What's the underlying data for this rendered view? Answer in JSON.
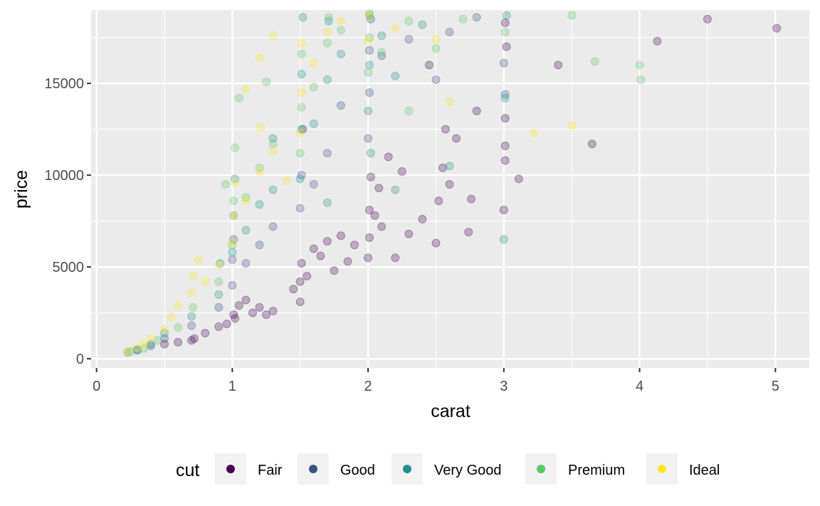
{
  "chart_data": {
    "type": "scatter",
    "xlabel": "carat",
    "ylabel": "price",
    "xlim": [
      -0.04,
      5.25
    ],
    "ylim": [
      -500,
      19000
    ],
    "x_ticks": [
      0,
      1,
      2,
      3,
      4,
      5
    ],
    "x_tick_labels": [
      "0",
      "1",
      "2",
      "3",
      "4",
      "5"
    ],
    "y_ticks": [
      0,
      5000,
      10000,
      15000
    ],
    "y_tick_labels": [
      "0",
      "5000",
      "10000",
      "15000"
    ],
    "grid": true,
    "background": "#EBEBEB",
    "point_alpha": 0.1,
    "legend": {
      "title": "cut",
      "position": "bottom",
      "entries": [
        {
          "label": "Fair",
          "color": "#440154"
        },
        {
          "label": "Good",
          "color": "#3B528B"
        },
        {
          "label": "Very Good",
          "color": "#21908C"
        },
        {
          "label": "Premium",
          "color": "#5DC863"
        },
        {
          "label": "Ideal",
          "color": "#FDE725"
        }
      ]
    },
    "series": [
      {
        "name": "Fair",
        "color": "#440154",
        "points": [
          [
            0.7,
            1000
          ],
          [
            0.72,
            1100
          ],
          [
            0.9,
            1750
          ],
          [
            0.96,
            1900
          ],
          [
            1.01,
            2400
          ],
          [
            1.05,
            2900
          ],
          [
            1.1,
            3200
          ],
          [
            1.2,
            2800
          ],
          [
            1.3,
            2600
          ],
          [
            1.5,
            3100
          ],
          [
            1.5,
            4200
          ],
          [
            1.51,
            5200
          ],
          [
            1.6,
            6000
          ],
          [
            1.7,
            6400
          ],
          [
            1.8,
            6700
          ],
          [
            1.9,
            6200
          ],
          [
            2.0,
            5500
          ],
          [
            2.01,
            6600
          ],
          [
            2.01,
            8100
          ],
          [
            2.02,
            9900
          ],
          [
            2.1,
            7200
          ],
          [
            2.2,
            5500
          ],
          [
            2.3,
            6800
          ],
          [
            2.5,
            6300
          ],
          [
            2.52,
            8600
          ],
          [
            2.57,
            12500
          ],
          [
            2.6,
            9500
          ],
          [
            2.74,
            6900
          ],
          [
            2.76,
            8700
          ],
          [
            3.0,
            8100
          ],
          [
            3.01,
            10800
          ],
          [
            3.01,
            11600
          ],
          [
            3.01,
            13100
          ],
          [
            3.01,
            18300
          ],
          [
            3.02,
            17000
          ],
          [
            3.11,
            9800
          ],
          [
            3.4,
            16000
          ],
          [
            3.65,
            11700
          ],
          [
            4.13,
            17300
          ],
          [
            4.5,
            18500
          ],
          [
            5.01,
            18000
          ],
          [
            0.5,
            800
          ],
          [
            0.6,
            900
          ],
          [
            0.8,
            1400
          ],
          [
            1.02,
            2200
          ],
          [
            1.15,
            2500
          ],
          [
            1.25,
            2400
          ],
          [
            1.45,
            3800
          ],
          [
            1.55,
            4500
          ],
          [
            1.65,
            5600
          ],
          [
            1.75,
            4800
          ],
          [
            1.85,
            5300
          ],
          [
            2.05,
            7800
          ],
          [
            2.08,
            9300
          ],
          [
            2.15,
            11000
          ],
          [
            2.25,
            10200
          ],
          [
            2.4,
            7600
          ],
          [
            2.55,
            10400
          ],
          [
            2.65,
            12000
          ],
          [
            2.8,
            13500
          ],
          [
            2.45,
            16000
          ]
        ]
      },
      {
        "name": "Good",
        "color": "#3B528B",
        "points": [
          [
            0.3,
            500
          ],
          [
            0.4,
            700
          ],
          [
            0.5,
            1100
          ],
          [
            0.7,
            1800
          ],
          [
            0.9,
            2800
          ],
          [
            1.0,
            4000
          ],
          [
            1.0,
            5400
          ],
          [
            1.01,
            6500
          ],
          [
            1.1,
            5200
          ],
          [
            1.2,
            6200
          ],
          [
            1.3,
            7200
          ],
          [
            1.5,
            8200
          ],
          [
            1.51,
            10000
          ],
          [
            1.52,
            12500
          ],
          [
            1.6,
            9500
          ],
          [
            1.7,
            11200
          ],
          [
            1.8,
            13800
          ],
          [
            2.0,
            12000
          ],
          [
            2.01,
            14500
          ],
          [
            2.01,
            16800
          ],
          [
            2.02,
            18500
          ],
          [
            2.1,
            16500
          ],
          [
            2.3,
            17400
          ],
          [
            2.5,
            15200
          ],
          [
            2.6,
            17800
          ],
          [
            2.8,
            18600
          ],
          [
            3.0,
            16100
          ],
          [
            3.01,
            14400
          ]
        ]
      },
      {
        "name": "Very Good",
        "color": "#21908C",
        "points": [
          [
            0.23,
            350
          ],
          [
            0.3,
            450
          ],
          [
            0.4,
            800
          ],
          [
            0.5,
            1400
          ],
          [
            0.7,
            2300
          ],
          [
            0.9,
            3500
          ],
          [
            0.91,
            5200
          ],
          [
            1.0,
            5800
          ],
          [
            1.01,
            7800
          ],
          [
            1.02,
            9800
          ],
          [
            1.1,
            7000
          ],
          [
            1.2,
            8400
          ],
          [
            1.3,
            9200
          ],
          [
            1.5,
            9800
          ],
          [
            1.51,
            12500
          ],
          [
            1.51,
            15500
          ],
          [
            1.52,
            18600
          ],
          [
            1.6,
            12800
          ],
          [
            1.7,
            15200
          ],
          [
            1.71,
            18400
          ],
          [
            1.8,
            16600
          ],
          [
            2.0,
            13500
          ],
          [
            2.01,
            16000
          ],
          [
            2.01,
            18700
          ],
          [
            2.02,
            11200
          ],
          [
            2.1,
            17600
          ],
          [
            2.2,
            15400
          ],
          [
            2.4,
            18200
          ],
          [
            2.6,
            10500
          ],
          [
            3.0,
            6500
          ],
          [
            3.01,
            14200
          ],
          [
            3.02,
            18700
          ],
          [
            1.3,
            12000
          ],
          [
            1.7,
            8500
          ],
          [
            2.2,
            9200
          ]
        ]
      },
      {
        "name": "Premium",
        "color": "#5DC863",
        "points": [
          [
            0.25,
            400
          ],
          [
            0.35,
            550
          ],
          [
            0.45,
            1000
          ],
          [
            0.6,
            1700
          ],
          [
            0.71,
            2800
          ],
          [
            0.9,
            4200
          ],
          [
            1.0,
            6200
          ],
          [
            1.01,
            8600
          ],
          [
            1.02,
            11500
          ],
          [
            1.1,
            8800
          ],
          [
            1.2,
            10400
          ],
          [
            1.3,
            11700
          ],
          [
            1.5,
            11200
          ],
          [
            1.51,
            13700
          ],
          [
            1.51,
            16600
          ],
          [
            1.6,
            14800
          ],
          [
            1.7,
            17200
          ],
          [
            1.71,
            18600
          ],
          [
            1.8,
            17900
          ],
          [
            2.0,
            15600
          ],
          [
            2.01,
            17500
          ],
          [
            2.01,
            18800
          ],
          [
            2.1,
            16700
          ],
          [
            2.3,
            18400
          ],
          [
            2.5,
            16900
          ],
          [
            2.7,
            18500
          ],
          [
            3.01,
            17800
          ],
          [
            3.5,
            18700
          ],
          [
            3.67,
            16200
          ],
          [
            4.0,
            16000
          ],
          [
            4.01,
            15200
          ],
          [
            1.05,
            14200
          ],
          [
            1.25,
            15100
          ],
          [
            0.95,
            9500
          ],
          [
            2.3,
            13500
          ]
        ]
      },
      {
        "name": "Ideal",
        "color": "#FDE725",
        "points": [
          [
            0.23,
            400
          ],
          [
            0.3,
            600
          ],
          [
            0.35,
            800
          ],
          [
            0.4,
            1100
          ],
          [
            0.5,
            1600
          ],
          [
            0.55,
            2300
          ],
          [
            0.6,
            2900
          ],
          [
            0.7,
            3600
          ],
          [
            0.71,
            4500
          ],
          [
            0.75,
            5400
          ],
          [
            0.8,
            4200
          ],
          [
            0.9,
            5100
          ],
          [
            1.0,
            6300
          ],
          [
            1.01,
            7800
          ],
          [
            1.02,
            9600
          ],
          [
            1.1,
            8600
          ],
          [
            1.2,
            10200
          ],
          [
            1.21,
            12600
          ],
          [
            1.3,
            11300
          ],
          [
            1.4,
            9700
          ],
          [
            1.5,
            12300
          ],
          [
            1.51,
            14500
          ],
          [
            1.51,
            17200
          ],
          [
            1.6,
            16100
          ],
          [
            1.7,
            17800
          ],
          [
            1.8,
            18400
          ],
          [
            2.0,
            17300
          ],
          [
            2.01,
            18700
          ],
          [
            2.2,
            18000
          ],
          [
            2.5,
            17400
          ],
          [
            3.22,
            12300
          ],
          [
            3.5,
            12700
          ],
          [
            1.1,
            14700
          ],
          [
            1.2,
            16400
          ],
          [
            1.3,
            17600
          ],
          [
            2.6,
            14000
          ]
        ]
      }
    ]
  }
}
